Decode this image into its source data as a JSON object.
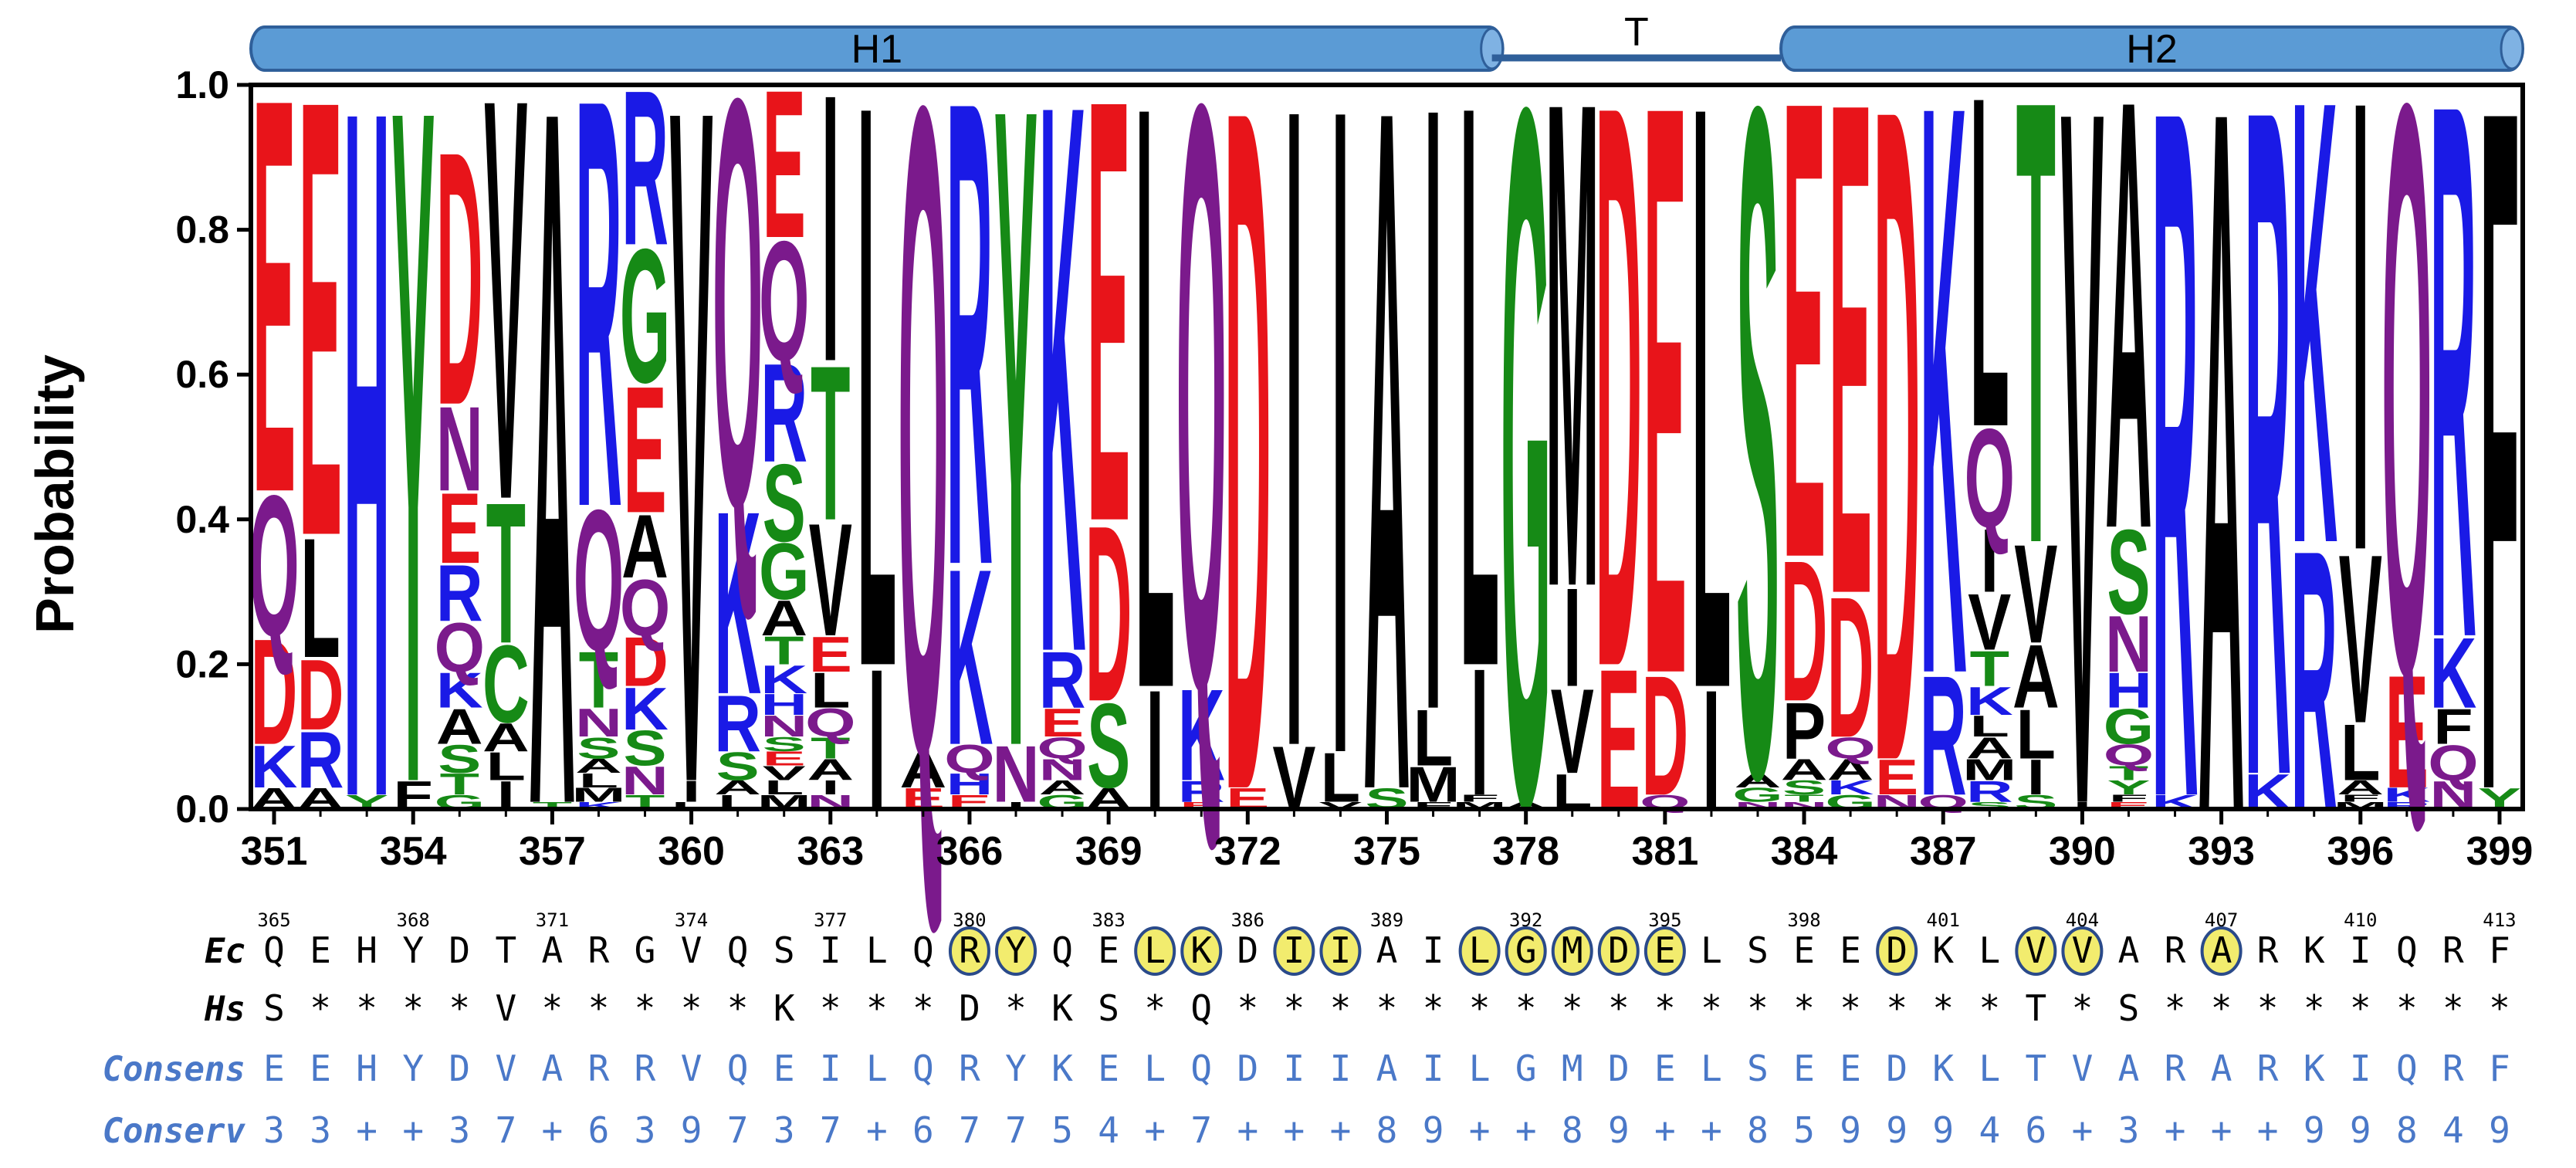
{
  "chart_data": {
    "type": "sequence-logo",
    "ylabel": "Probability",
    "ylim": [
      0,
      1.0
    ],
    "yticks": [
      "0.0",
      "0.2",
      "0.4",
      "0.6",
      "0.8",
      "1.0"
    ],
    "x_start": 351,
    "x_end": 399,
    "xticks": [
      "351",
      "354",
      "357",
      "360",
      "363",
      "366",
      "369",
      "372",
      "375",
      "378",
      "381",
      "384",
      "387",
      "390",
      "393",
      "396",
      "399"
    ],
    "secondary_ticks": [
      "365",
      "368",
      "371",
      "374",
      "377",
      "380",
      "383",
      "386",
      "389",
      "392",
      "395",
      "398",
      "401",
      "404",
      "407",
      "410",
      "413"
    ],
    "structure": [
      {
        "label": "H1",
        "type": "helix",
        "start": 351,
        "end": 377
      },
      {
        "label": "T",
        "type": "turn",
        "start": 378,
        "end": 383
      },
      {
        "label": "H2",
        "type": "helix",
        "start": 384,
        "end": 399
      }
    ],
    "colors": {
      "acidic": "#e8141a",
      "basic": "#1a1ae6",
      "polar": "#7b1a8c",
      "hydrophobic": "#000000",
      "small": "#168a16",
      "highlight": "#f2ec6e",
      "highlight_border": "#2a4a8a",
      "consensus": "#4a78c8",
      "helix": "#5b9bd5"
    },
    "columns": [
      [
        [
          "E",
          0.56
        ],
        [
          "Q",
          0.2
        ],
        [
          "D",
          0.15
        ],
        [
          "K",
          0.06
        ],
        [
          "A",
          0.03
        ]
      ],
      [
        [
          "E",
          0.62
        ],
        [
          "L",
          0.17
        ],
        [
          "D",
          0.1
        ],
        [
          "R",
          0.08
        ],
        [
          "A",
          0.03
        ]
      ],
      [
        [
          "H",
          0.98
        ],
        [
          "Y",
          0.02
        ]
      ],
      [
        [
          "Y",
          0.96
        ],
        [
          "F",
          0.04
        ]
      ],
      [
        [
          "D",
          0.36
        ],
        [
          "N",
          0.12
        ],
        [
          "E",
          0.1
        ],
        [
          "R",
          0.08
        ],
        [
          "Q",
          0.07
        ],
        [
          "A",
          0.05
        ],
        [
          "K",
          0.05
        ],
        [
          "S",
          0.04
        ],
        [
          "T",
          0.03
        ],
        [
          "G",
          0.02
        ]
      ],
      [
        [
          "V",
          0.57
        ],
        [
          "T",
          0.2
        ],
        [
          "C",
          0.11
        ],
        [
          "I",
          0.04
        ],
        [
          "L",
          0.04
        ],
        [
          "A",
          0.04
        ]
      ],
      [
        [
          "A",
          0.99
        ],
        [
          "T",
          0.01
        ]
      ],
      [
        [
          "R",
          0.58
        ],
        [
          "Q",
          0.2
        ],
        [
          "T",
          0.08
        ],
        [
          "N",
          0.04
        ],
        [
          "S",
          0.03
        ],
        [
          "M",
          0.02
        ],
        [
          "L",
          0.02
        ],
        [
          "A",
          0.02
        ],
        [
          "K",
          0.01
        ]
      ],
      [
        [
          "R",
          0.22
        ],
        [
          "G",
          0.19
        ],
        [
          "E",
          0.18
        ],
        [
          "A",
          0.09
        ],
        [
          "Q",
          0.08
        ],
        [
          "D",
          0.07
        ],
        [
          "K",
          0.06
        ],
        [
          "S",
          0.05
        ],
        [
          "N",
          0.04
        ],
        [
          "T",
          0.02
        ]
      ],
      [
        [
          "V",
          0.96
        ],
        [
          "I",
          0.03
        ],
        [
          "L",
          0.01
        ]
      ],
      [
        [
          "Q",
          0.58
        ],
        [
          "K",
          0.26
        ],
        [
          "R",
          0.08
        ],
        [
          "S",
          0.04
        ],
        [
          "L",
          0.02
        ],
        [
          "A",
          0.02
        ]
      ],
      [
        [
          "E",
          0.21
        ],
        [
          "Q",
          0.17
        ],
        [
          "R",
          0.14
        ],
        [
          "S",
          0.11
        ],
        [
          "G",
          0.08
        ],
        [
          "A",
          0.05
        ],
        [
          "K",
          0.04
        ],
        [
          "T",
          0.04
        ],
        [
          "N",
          0.03
        ],
        [
          "H",
          0.03
        ],
        [
          "M",
          0.02
        ],
        [
          "L",
          0.02
        ],
        [
          "V",
          0.02
        ],
        [
          "E",
          0.02
        ],
        [
          "S",
          0.02
        ]
      ],
      [
        [
          "I",
          0.38
        ],
        [
          "T",
          0.22
        ],
        [
          "V",
          0.16
        ],
        [
          "L",
          0.05
        ],
        [
          "E",
          0.05
        ],
        [
          "Q",
          0.04
        ],
        [
          "N",
          0.02
        ],
        [
          "A",
          0.03
        ],
        [
          "I",
          0.02
        ],
        [
          "T",
          0.03
        ]
      ],
      [
        [
          "L",
          0.8
        ],
        [
          "I",
          0.2
        ]
      ],
      [
        [
          "Q",
          0.92
        ],
        [
          "A",
          0.05
        ],
        [
          "E",
          0.03
        ]
      ],
      [
        [
          "R",
          0.66
        ],
        [
          "K",
          0.25
        ],
        [
          "Q",
          0.04
        ],
        [
          "H",
          0.03
        ],
        [
          "E",
          0.02
        ]
      ],
      [
        [
          "Y",
          0.91
        ],
        [
          "N",
          0.08
        ],
        [
          "I",
          0.01
        ]
      ],
      [
        [
          "K",
          0.78
        ],
        [
          "R",
          0.08
        ],
        [
          "E",
          0.04
        ],
        [
          "N",
          0.03
        ],
        [
          "Q",
          0.03
        ],
        [
          "G",
          0.02
        ],
        [
          "A",
          0.02
        ]
      ],
      [
        [
          "E",
          0.6
        ],
        [
          "D",
          0.25
        ],
        [
          "S",
          0.12
        ],
        [
          "A",
          0.03
        ]
      ],
      [
        [
          "L",
          0.83
        ],
        [
          "I",
          0.17
        ]
      ],
      [
        [
          "Q",
          0.83
        ],
        [
          "K",
          0.13
        ],
        [
          "R",
          0.03
        ],
        [
          "E",
          0.01
        ]
      ],
      [
        [
          "D",
          0.97
        ],
        [
          "E",
          0.03
        ]
      ],
      [
        [
          "I",
          0.91
        ],
        [
          "V",
          0.09
        ]
      ],
      [
        [
          "I",
          0.92
        ],
        [
          "L",
          0.07
        ],
        [
          "V",
          0.01
        ]
      ],
      [
        [
          "A",
          0.97
        ],
        [
          "S",
          0.03
        ]
      ],
      [
        [
          "I",
          0.86
        ],
        [
          "L",
          0.08
        ],
        [
          "M",
          0.05
        ],
        [
          "F",
          0.01
        ]
      ],
      [
        [
          "L",
          0.8
        ],
        [
          "I",
          0.18
        ],
        [
          "M",
          0.01
        ],
        [
          "F",
          0.01
        ]
      ],
      [
        [
          "G",
          0.99
        ],
        [
          "A",
          0.01
        ]
      ],
      [
        [
          "M",
          0.69
        ],
        [
          "I",
          0.14
        ],
        [
          "V",
          0.12
        ],
        [
          "L",
          0.05
        ]
      ],
      [
        [
          "D",
          0.8
        ],
        [
          "E",
          0.2
        ]
      ],
      [
        [
          "E",
          0.81
        ],
        [
          "D",
          0.17
        ],
        [
          "Q",
          0.02
        ]
      ],
      [
        [
          "L",
          0.83
        ],
        [
          "I",
          0.17
        ]
      ],
      [
        [
          "S",
          0.95
        ],
        [
          "G",
          0.02
        ],
        [
          "A",
          0.02
        ],
        [
          "N",
          0.01
        ]
      ],
      [
        [
          "E",
          0.65
        ],
        [
          "D",
          0.2
        ],
        [
          "P",
          0.08
        ],
        [
          "A",
          0.03
        ],
        [
          "S",
          0.02
        ],
        [
          "N",
          0.01
        ],
        [
          "T",
          0.01
        ]
      ],
      [
        [
          "E",
          0.7
        ],
        [
          "D",
          0.2
        ],
        [
          "A",
          0.03
        ],
        [
          "Q",
          0.03
        ],
        [
          "G",
          0.02
        ],
        [
          "K",
          0.02
        ]
      ],
      [
        [
          "D",
          0.93
        ],
        [
          "E",
          0.05
        ],
        [
          "N",
          0.02
        ]
      ],
      [
        [
          "K",
          0.81
        ],
        [
          "R",
          0.17
        ],
        [
          "Q",
          0.02
        ]
      ],
      [
        [
          "L",
          0.47
        ],
        [
          "Q",
          0.14
        ],
        [
          "I",
          0.09
        ],
        [
          "V",
          0.08
        ],
        [
          "T",
          0.05
        ],
        [
          "K",
          0.04
        ],
        [
          "R",
          0.03
        ],
        [
          "M",
          0.03
        ],
        [
          "A",
          0.03
        ],
        [
          "S",
          0.01
        ],
        [
          "L",
          0.03
        ]
      ],
      [
        [
          "T",
          0.63
        ],
        [
          "V",
          0.14
        ],
        [
          "I",
          0.05
        ],
        [
          "A",
          0.09
        ],
        [
          "L",
          0.07
        ],
        [
          "S",
          0.02
        ]
      ],
      [
        [
          "V",
          0.99
        ],
        [
          "I",
          0.01
        ]
      ],
      [
        [
          "A",
          0.61
        ],
        [
          "S",
          0.12
        ],
        [
          "N",
          0.08
        ],
        [
          "G",
          0.05
        ],
        [
          "H",
          0.05
        ],
        [
          "Q",
          0.03
        ],
        [
          "Y",
          0.02
        ],
        [
          "T",
          0.02
        ],
        [
          "E",
          0.01
        ],
        [
          "F",
          0.01
        ]
      ],
      [
        [
          "R",
          0.98
        ],
        [
          "K",
          0.02
        ]
      ],
      [
        [
          "A",
          1.0
        ]
      ],
      [
        [
          "R",
          0.95
        ],
        [
          "K",
          0.05
        ]
      ],
      [
        [
          "K",
          0.63
        ],
        [
          "R",
          0.37
        ]
      ],
      [
        [
          "I",
          0.64
        ],
        [
          "V",
          0.24
        ],
        [
          "L",
          0.08
        ],
        [
          "M",
          0.01
        ],
        [
          "F",
          0.01
        ],
        [
          "A",
          0.02
        ]
      ],
      [
        [
          "Q",
          0.81
        ],
        [
          "E",
          0.16
        ],
        [
          "R",
          0.01
        ],
        [
          "K",
          0.02
        ]
      ],
      [
        [
          "R",
          0.76
        ],
        [
          "K",
          0.1
        ],
        [
          "Q",
          0.05
        ],
        [
          "F",
          0.05
        ],
        [
          "N",
          0.04
        ]
      ],
      [
        [
          "F",
          0.97
        ],
        [
          "Y",
          0.03
        ]
      ]
    ]
  },
  "sequence_rows": {
    "ec": {
      "label": "Ec",
      "residues": [
        "Q",
        "E",
        "H",
        "Y",
        "D",
        "T",
        "A",
        "R",
        "G",
        "V",
        "Q",
        "S",
        "I",
        "L",
        "Q",
        "R",
        "Y",
        "Q",
        "E",
        "L",
        "K",
        "D",
        "I",
        "I",
        "A",
        "I",
        "L",
        "G",
        "M",
        "D",
        "E",
        "L",
        "S",
        "E",
        "E",
        "D",
        "K",
        "L",
        "V",
        "V",
        "A",
        "R",
        "A",
        "R",
        "K",
        "I",
        "Q",
        "R",
        "F"
      ],
      "highlighted": [
        false,
        false,
        false,
        false,
        false,
        false,
        false,
        false,
        false,
        false,
        false,
        false,
        false,
        false,
        false,
        true,
        true,
        false,
        false,
        true,
        true,
        false,
        true,
        true,
        false,
        false,
        true,
        true,
        true,
        true,
        true,
        false,
        false,
        false,
        false,
        true,
        false,
        false,
        true,
        true,
        false,
        false,
        true,
        false,
        false,
        false,
        false,
        false,
        false
      ]
    },
    "hs": {
      "label": "Hs",
      "residues": [
        "S",
        "*",
        "*",
        "*",
        "*",
        "V",
        "*",
        "*",
        "*",
        "*",
        "*",
        "K",
        "*",
        "*",
        "*",
        "D",
        "*",
        "K",
        "S",
        "*",
        "Q",
        "*",
        "*",
        "*",
        "*",
        "*",
        "*",
        "*",
        "*",
        "*",
        "*",
        "*",
        "*",
        "*",
        "*",
        "*",
        "*",
        "*",
        "T",
        "*",
        "S",
        "*",
        "*",
        "*",
        "*",
        "*",
        "*",
        "*",
        "*"
      ]
    },
    "consensus": {
      "label": "Consens",
      "residues": [
        "E",
        "E",
        "H",
        "Y",
        "D",
        "V",
        "A",
        "R",
        "R",
        "V",
        "Q",
        "E",
        "I",
        "L",
        "Q",
        "R",
        "Y",
        "K",
        "E",
        "L",
        "Q",
        "D",
        "I",
        "I",
        "A",
        "I",
        "L",
        "G",
        "M",
        "D",
        "E",
        "L",
        "S",
        "E",
        "E",
        "D",
        "K",
        "L",
        "T",
        "V",
        "A",
        "R",
        "A",
        "R",
        "K",
        "I",
        "Q",
        "R",
        "F"
      ]
    },
    "conservation": {
      "label": "Conserv",
      "residues": [
        "3",
        "3",
        "+",
        "+",
        "3",
        "7",
        "+",
        "6",
        "3",
        "9",
        "7",
        "3",
        "7",
        "+",
        "6",
        "7",
        "7",
        "5",
        "4",
        "+",
        "7",
        "+",
        "+",
        "+",
        "8",
        "9",
        "+",
        "+",
        "8",
        "9",
        "+",
        "+",
        "8",
        "5",
        "9",
        "9",
        "9",
        "4",
        "6",
        "+",
        "3",
        "+",
        "+",
        "+",
        "9",
        "9",
        "8",
        "4",
        "9"
      ]
    }
  }
}
